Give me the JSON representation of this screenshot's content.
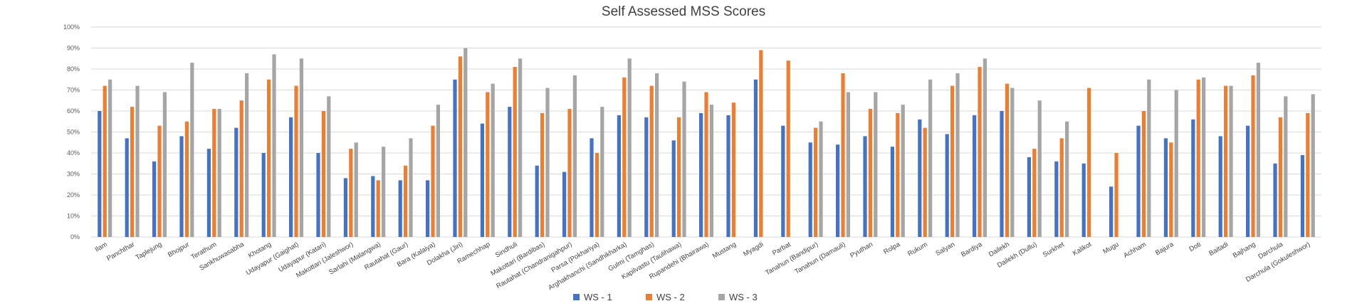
{
  "chart_data": {
    "type": "bar",
    "title": "Self Assessed MSS Scores",
    "xlabel": "",
    "ylabel": "",
    "ylim": [
      0,
      100
    ],
    "y_ticks": [
      "0%",
      "10%",
      "20%",
      "30%",
      "40%",
      "50%",
      "60%",
      "70%",
      "80%",
      "90%",
      "100%"
    ],
    "grid": true,
    "legend_position": "bottom",
    "categories": [
      "Ilam",
      "Panchthar",
      "Taplejung",
      "Bhojpur",
      "Terathum",
      "Sankhuwasabha",
      "Khotang",
      "Udayapur (Gaighat)",
      "Udayapur (Katari)",
      "Makottari (Jaleshwor)",
      "Sarlahi (Malangwa)",
      "Rautahat (Gaur)",
      "Bara (Kalaiya)",
      "Dolakha (Jiri)",
      "Ramechhap",
      "Sindhuli",
      "Makottari (Bardibas)",
      "Rautahat (Chandranigahpur)",
      "Parsa (Pokhariya)",
      "Arghakhanchi (Sandhikharka)",
      "Gulmi (Tamghas)",
      "Kapilvastu (Taulihawa)",
      "Rupandehi (Bhairawa)",
      "Mustang",
      "Myagdi",
      "Parbat",
      "Tanahun (Bandipur)",
      "Tanahun (Damauli)",
      "Pyuthan",
      "Rolpa",
      "Rukum",
      "Salyan",
      "Bardiya",
      "Dailekh",
      "Dailekh (Dullu)",
      "Surkhet",
      "Kalikot",
      "Mugu",
      "Achham",
      "Bajura",
      "Doti",
      "Baitadi",
      "Bajhang",
      "Darchula",
      "Darchula (Gokuleshwor)"
    ],
    "series": [
      {
        "name": "WS - 1",
        "color": "#4472c4",
        "values": [
          60,
          47,
          36,
          48,
          42,
          52,
          40,
          57,
          40,
          28,
          29,
          27,
          27,
          75,
          54,
          62,
          34,
          31,
          47,
          58,
          57,
          46,
          59,
          58,
          75,
          53,
          45,
          44,
          48,
          43,
          56,
          49,
          58,
          60,
          38,
          36,
          35,
          24,
          53,
          47,
          56,
          48,
          53,
          35,
          39
        ]
      },
      {
        "name": "WS - 2",
        "color": "#ed7d31",
        "values": [
          72,
          62,
          53,
          55,
          61,
          65,
          75,
          72,
          60,
          42,
          27,
          34,
          53,
          86,
          69,
          81,
          59,
          61,
          40,
          76,
          72,
          57,
          69,
          64,
          89,
          84,
          52,
          78,
          61,
          59,
          52,
          72,
          81,
          73,
          42,
          47,
          71,
          40,
          60,
          45,
          75,
          72,
          77,
          57,
          59
        ]
      },
      {
        "name": "WS - 3",
        "color": "#a5a5a5",
        "values": [
          75,
          72,
          69,
          83,
          61,
          78,
          87,
          85,
          67,
          45,
          43,
          47,
          63,
          90,
          73,
          85,
          71,
          77,
          62,
          85,
          78,
          74,
          63,
          null,
          null,
          null,
          55,
          69,
          69,
          63,
          75,
          78,
          85,
          71,
          65,
          55,
          null,
          null,
          75,
          70,
          76,
          72,
          83,
          67,
          68
        ]
      }
    ]
  }
}
